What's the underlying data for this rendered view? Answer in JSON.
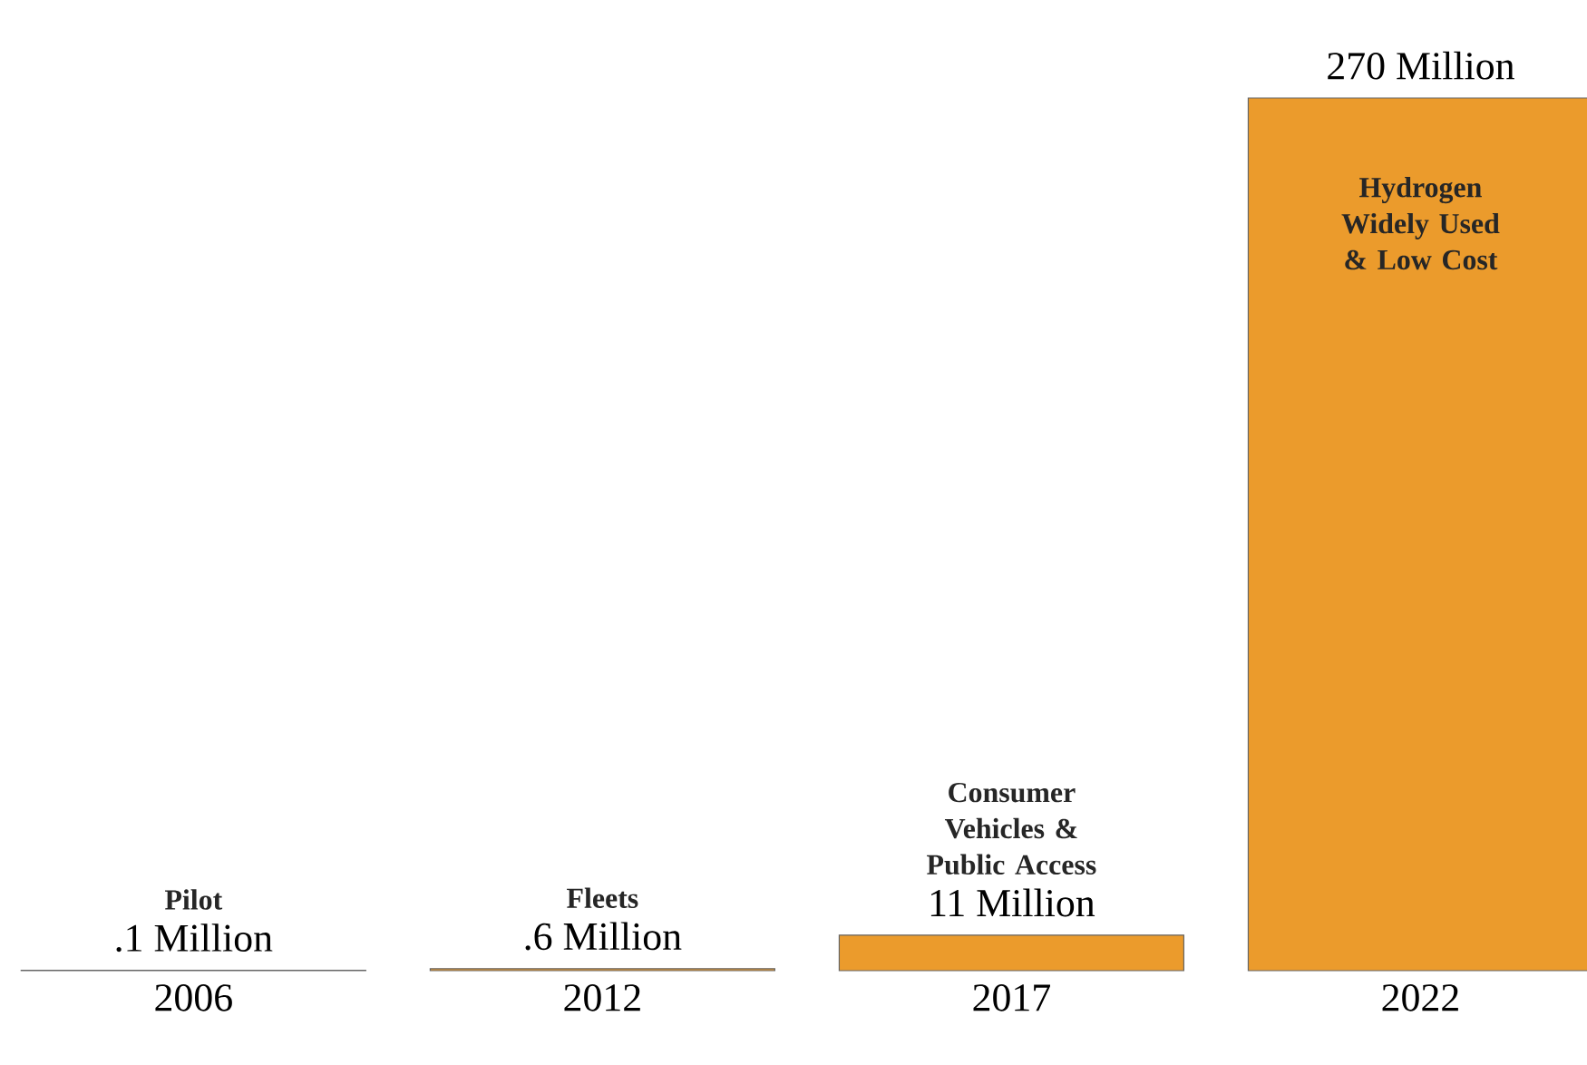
{
  "chart_data": {
    "type": "bar",
    "tick_labels": "x",
    "categories": [
      "2006",
      "2012",
      "2017",
      "2022"
    ],
    "values": [
      0.1,
      0.6,
      11,
      270
    ],
    "value_labels": [
      ".1 Million",
      ".6 Million",
      "11 Million",
      "270 Million"
    ],
    "color": "#eb9b2c",
    "annotations": [
      "Pilot",
      "Fleets",
      "Consumer Vehicles & Public Access",
      "Hydrogen Widely Used & Low Cost"
    ]
  }
}
